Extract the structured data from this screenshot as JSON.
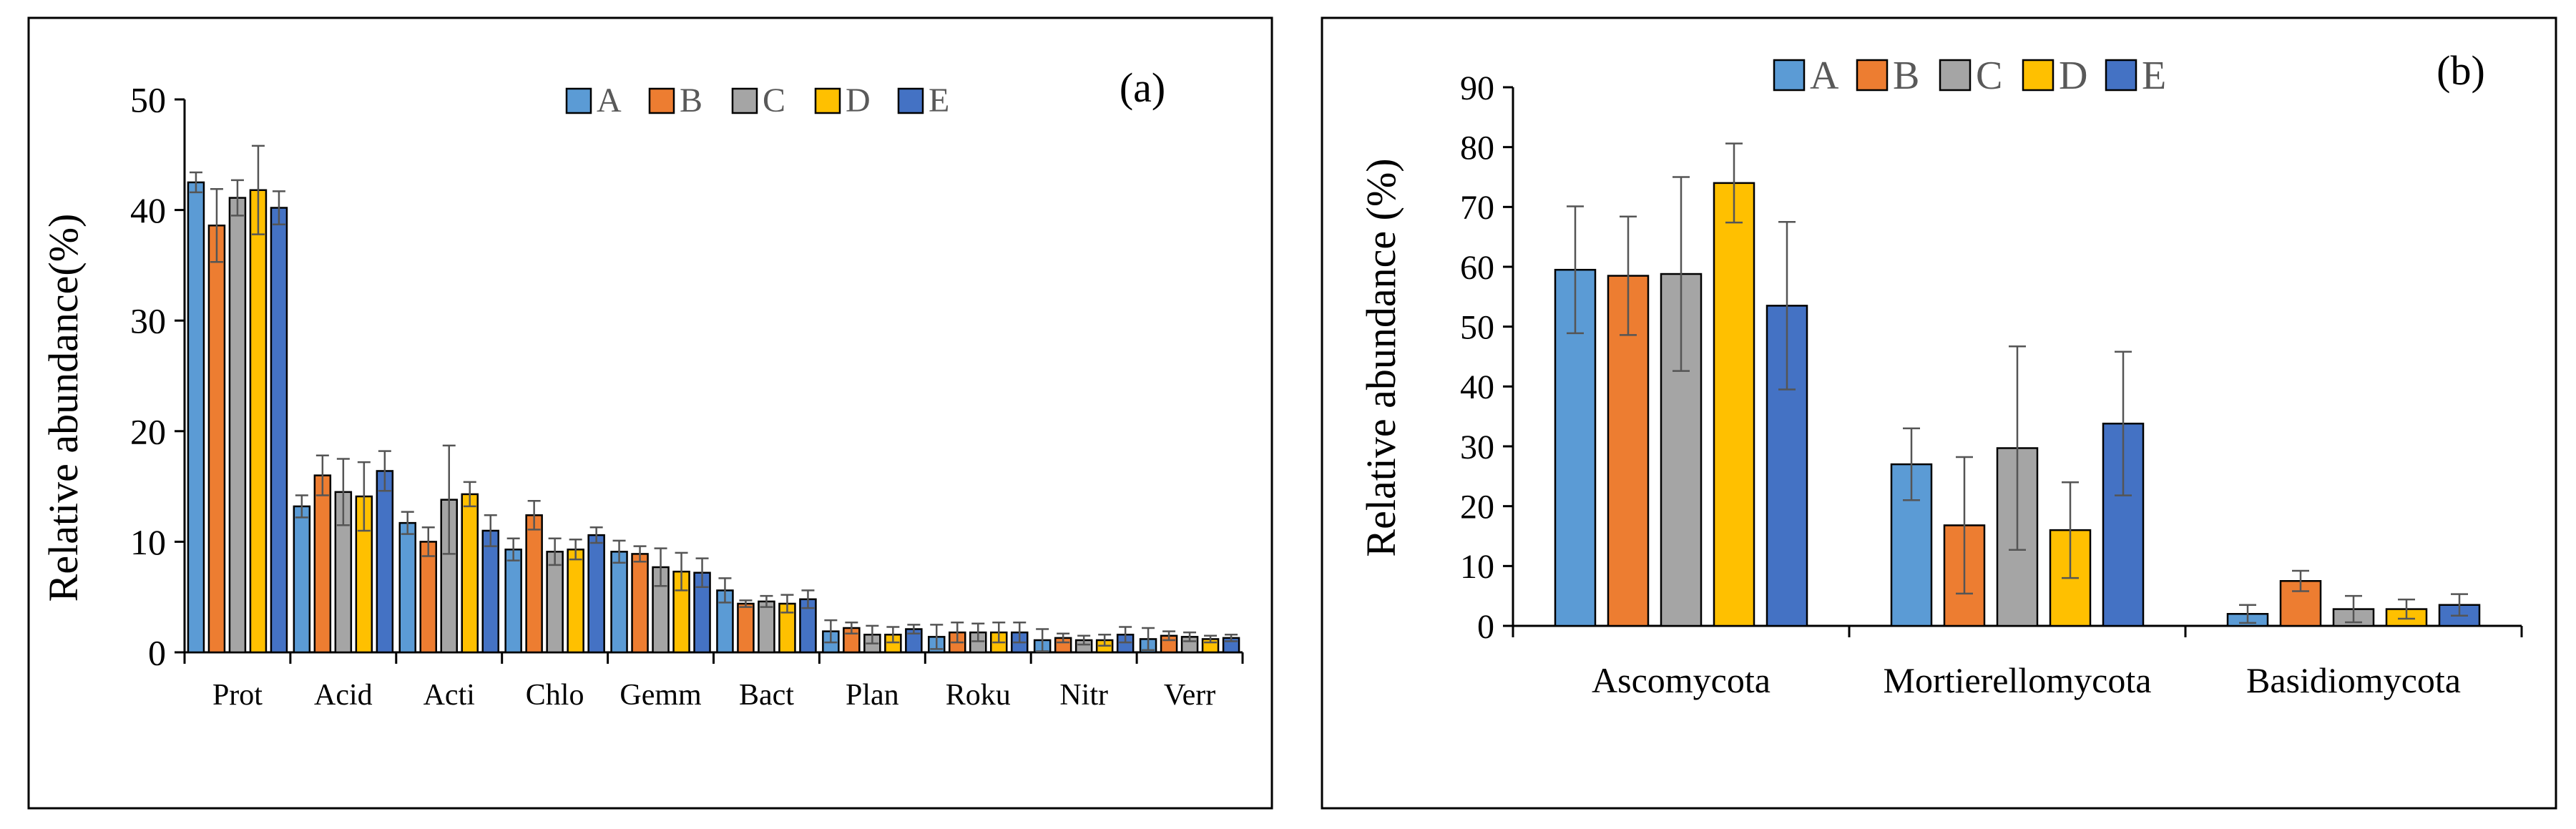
{
  "colors": {
    "A": "#5b9bd5",
    "B": "#ed7d31",
    "C": "#a5a5a5",
    "D": "#ffc000",
    "E": "#4472c4",
    "axis": "#000000",
    "error": "#555555"
  },
  "chart_data": [
    {
      "type": "bar",
      "panel_label": "(a)",
      "ylabel": "Relative abundance(%)",
      "ylim": [
        0,
        50
      ],
      "yticks": [
        "0",
        "10",
        "20",
        "30",
        "40",
        "50"
      ],
      "legend": [
        "A",
        "B",
        "C",
        "D",
        "E"
      ],
      "legend_position": "top-right",
      "categories": [
        "Prot",
        "Acid",
        "Acti",
        "Chlo",
        "Gemm",
        "Bact",
        "Plan",
        "Roku",
        "Nitr",
        "Verr"
      ],
      "series": [
        {
          "name": "A",
          "values": [
            42.5,
            13.2,
            11.7,
            9.3,
            9.1,
            5.6,
            1.9,
            1.4,
            1.1,
            1.2
          ],
          "errors": [
            0.9,
            1.0,
            1.0,
            1.0,
            1.0,
            1.1,
            1.0,
            1.1,
            1.0,
            1.0
          ]
        },
        {
          "name": "B",
          "values": [
            38.6,
            16.0,
            10.0,
            12.4,
            8.9,
            4.4,
            2.2,
            1.8,
            1.3,
            1.5
          ],
          "errors": [
            3.3,
            1.8,
            1.3,
            1.3,
            0.7,
            0.3,
            0.5,
            0.9,
            0.4,
            0.4
          ]
        },
        {
          "name": "C",
          "values": [
            41.1,
            14.5,
            13.8,
            9.1,
            7.7,
            4.6,
            1.6,
            1.8,
            1.1,
            1.4
          ],
          "errors": [
            1.6,
            3.0,
            4.9,
            1.2,
            1.7,
            0.5,
            0.8,
            0.8,
            0.4,
            0.4
          ]
        },
        {
          "name": "D",
          "values": [
            41.8,
            14.1,
            14.3,
            9.3,
            7.3,
            4.4,
            1.6,
            1.8,
            1.1,
            1.2
          ],
          "errors": [
            4.0,
            3.1,
            1.1,
            0.9,
            1.7,
            0.8,
            0.7,
            0.9,
            0.5,
            0.3
          ]
        },
        {
          "name": "E",
          "values": [
            40.2,
            16.4,
            11.0,
            10.6,
            7.2,
            4.8,
            2.1,
            1.8,
            1.6,
            1.3
          ],
          "errors": [
            1.5,
            1.8,
            1.4,
            0.7,
            1.3,
            0.8,
            0.4,
            0.9,
            0.7,
            0.3
          ]
        }
      ]
    },
    {
      "type": "bar",
      "panel_label": "(b)",
      "ylabel": "Relative abundance (%)",
      "ylim": [
        0,
        90
      ],
      "yticks": [
        "0",
        "10",
        "20",
        "30",
        "40",
        "50",
        "60",
        "70",
        "80",
        "90"
      ],
      "legend": [
        "A",
        "B",
        "C",
        "D",
        "E"
      ],
      "legend_position": "top",
      "categories": [
        "Ascomycota",
        "Mortierellomycota",
        "Basidiomycota"
      ],
      "series": [
        {
          "name": "A",
          "values": [
            59.5,
            27.0,
            2.0
          ],
          "errors": [
            10.6,
            6.0,
            1.5
          ]
        },
        {
          "name": "B",
          "values": [
            58.5,
            16.8,
            7.5
          ],
          "errors": [
            9.9,
            11.4,
            1.7
          ]
        },
        {
          "name": "C",
          "values": [
            58.8,
            29.7,
            2.8
          ],
          "errors": [
            16.2,
            17.0,
            2.2
          ]
        },
        {
          "name": "D",
          "values": [
            74.0,
            16.0,
            2.8
          ],
          "errors": [
            6.6,
            8.0,
            1.6
          ]
        },
        {
          "name": "E",
          "values": [
            53.5,
            33.8,
            3.5
          ],
          "errors": [
            14.0,
            12.0,
            1.8
          ]
        }
      ]
    }
  ]
}
